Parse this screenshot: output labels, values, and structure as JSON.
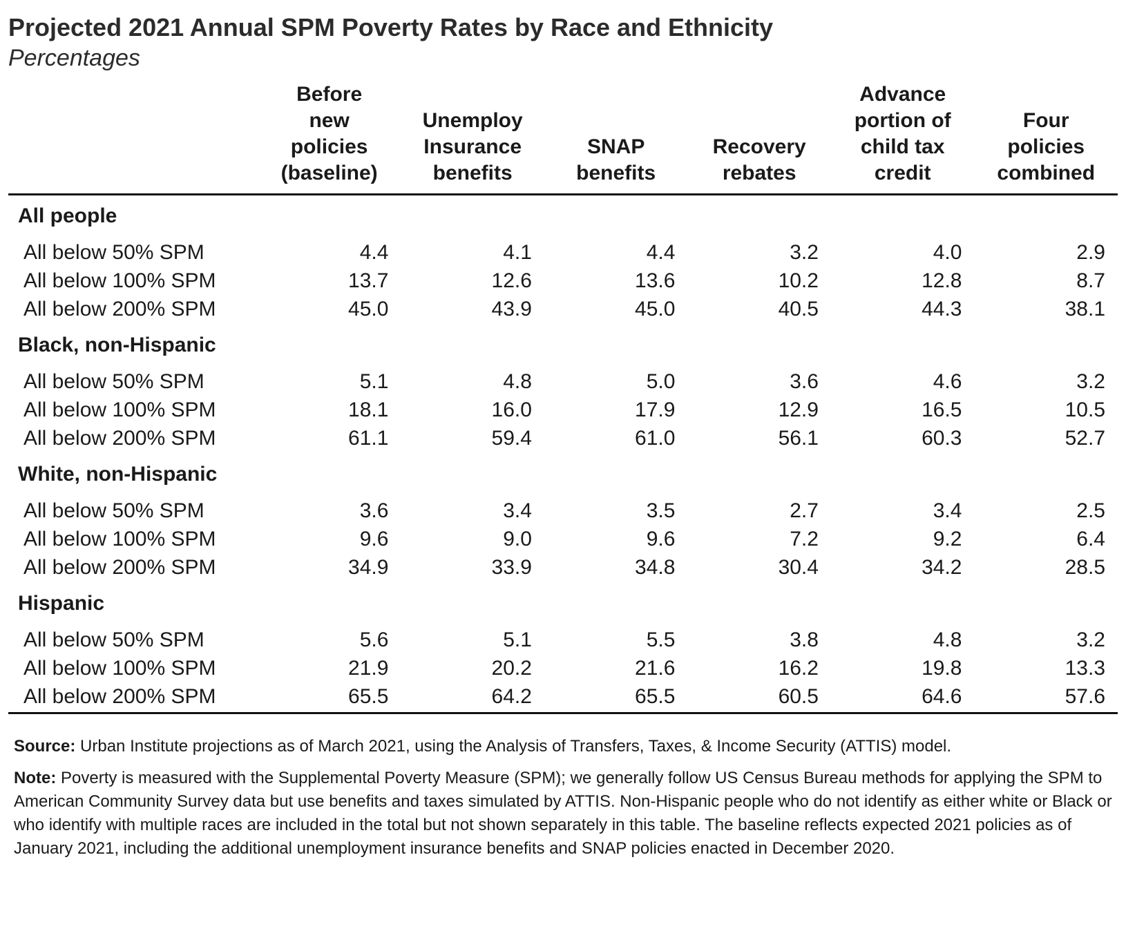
{
  "title": "Projected 2021 Annual SPM Poverty Rates by Race and Ethnicity",
  "subtitle": "Percentages",
  "columns": [
    "Before new policies (baseline)",
    "Unemploy Insurance benefits",
    "SNAP benefits",
    "Recovery rebates",
    "Advance portion of child tax credit",
    "Four policies combined"
  ],
  "groups": [
    {
      "name": "All people",
      "rows": [
        {
          "label": "All below 50% SPM",
          "values": [
            "4.4",
            "4.1",
            "4.4",
            "3.2",
            "4.0",
            "2.9"
          ]
        },
        {
          "label": "All below 100% SPM",
          "values": [
            "13.7",
            "12.6",
            "13.6",
            "10.2",
            "12.8",
            "8.7"
          ]
        },
        {
          "label": "All below 200% SPM",
          "values": [
            "45.0",
            "43.9",
            "45.0",
            "40.5",
            "44.3",
            "38.1"
          ]
        }
      ]
    },
    {
      "name": "Black, non-Hispanic",
      "rows": [
        {
          "label": "All below 50% SPM",
          "values": [
            "5.1",
            "4.8",
            "5.0",
            "3.6",
            "4.6",
            "3.2"
          ]
        },
        {
          "label": "All below 100% SPM",
          "values": [
            "18.1",
            "16.0",
            "17.9",
            "12.9",
            "16.5",
            "10.5"
          ]
        },
        {
          "label": "All below 200% SPM",
          "values": [
            "61.1",
            "59.4",
            "61.0",
            "56.1",
            "60.3",
            "52.7"
          ]
        }
      ]
    },
    {
      "name": "White, non-Hispanic",
      "rows": [
        {
          "label": "All below 50% SPM",
          "values": [
            "3.6",
            "3.4",
            "3.5",
            "2.7",
            "3.4",
            "2.5"
          ]
        },
        {
          "label": "All below 100% SPM",
          "values": [
            "9.6",
            "9.0",
            "9.6",
            "7.2",
            "9.2",
            "6.4"
          ]
        },
        {
          "label": "All below 200% SPM",
          "values": [
            "34.9",
            "33.9",
            "34.8",
            "30.4",
            "34.2",
            "28.5"
          ]
        }
      ]
    },
    {
      "name": "Hispanic",
      "rows": [
        {
          "label": "All below 50% SPM",
          "values": [
            "5.6",
            "5.1",
            "5.5",
            "3.8",
            "4.8",
            "3.2"
          ]
        },
        {
          "label": "All below 100% SPM",
          "values": [
            "21.9",
            "20.2",
            "21.6",
            "16.2",
            "19.8",
            "13.3"
          ]
        },
        {
          "label": "All below 200% SPM",
          "values": [
            "65.5",
            "64.2",
            "65.5",
            "60.5",
            "64.6",
            "57.6"
          ]
        }
      ]
    }
  ],
  "source": {
    "lead": "Source:",
    "text": " Urban Institute projections as of March 2021, using the Analysis of Transfers, Taxes, & Income Security (ATTIS) model."
  },
  "note": {
    "lead": "Note:",
    "text": " Poverty is measured with the Supplemental Poverty Measure (SPM); we generally follow US Census Bureau methods for applying the SPM to American Community Survey data but use benefits and taxes simulated by ATTIS. Non-Hispanic people who do not identify as either white or Black or who identify with multiple races are included in the total but not shown separately in this table. The baseline reflects expected 2021 policies as of January 2021, including the additional unemployment insurance benefits and SNAP policies enacted in December 2020."
  }
}
